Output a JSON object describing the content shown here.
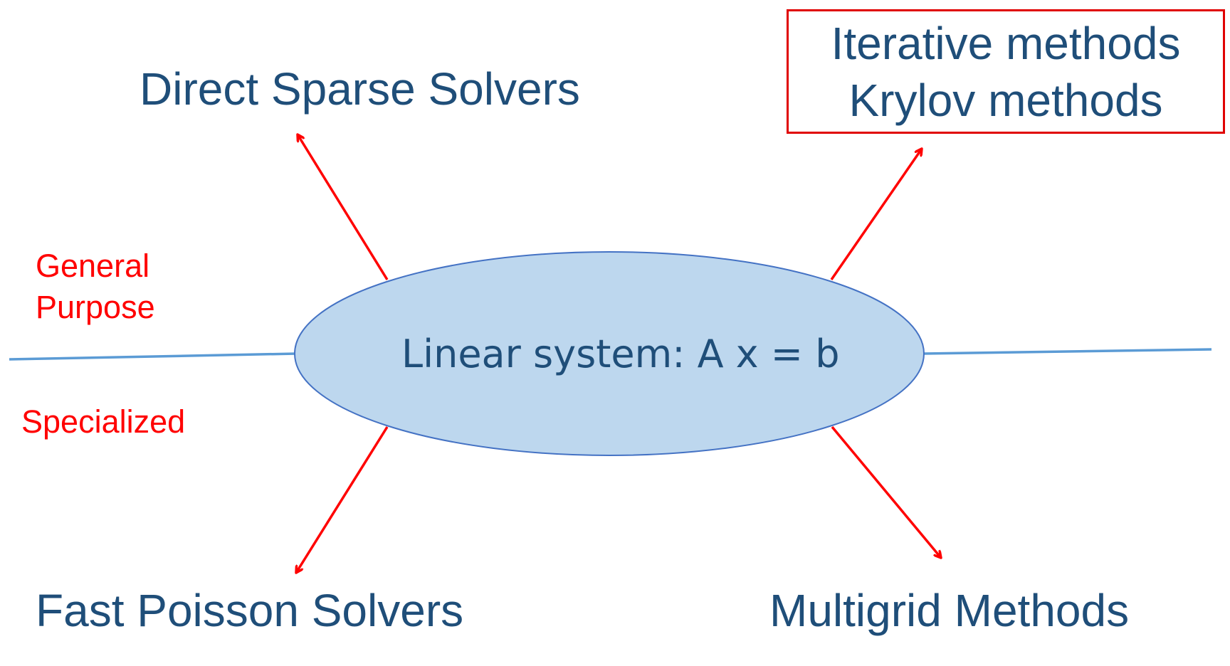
{
  "center": {
    "label": "Linear system: A x = b"
  },
  "methods": {
    "top_left": "Direct Sparse Solvers",
    "top_right_line1": "Iterative methods",
    "top_right_line2": "Krylov methods",
    "bottom_left": "Fast Poisson Solvers",
    "bottom_right": "Multigrid Methods"
  },
  "categories": {
    "above_line_1": "General",
    "above_line_2": "Purpose",
    "below_line": "Specialized"
  },
  "colors": {
    "ellipse_fill": "#BDD7EE",
    "ellipse_stroke": "#4472C4",
    "divider": "#5B9BD5",
    "arrow": "#FF0000",
    "method_text": "#1F4E79",
    "category_text": "#FF0000",
    "highlight_box": "#E00000"
  }
}
